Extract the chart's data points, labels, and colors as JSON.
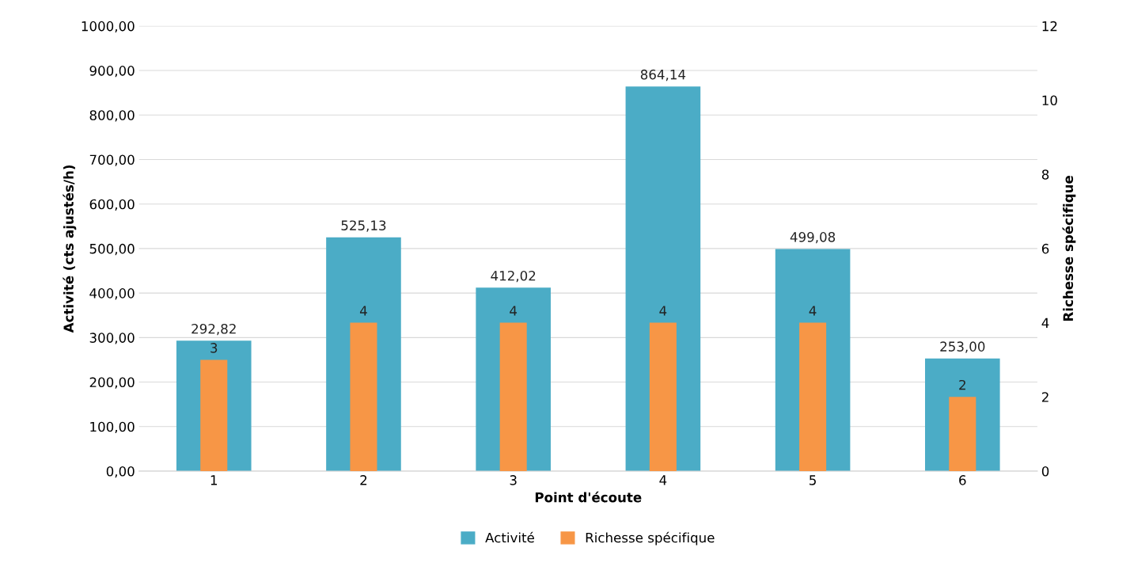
{
  "chart_data": {
    "type": "bar",
    "xlabel": "Point d'écoute",
    "ylabel": "Activité (cts ajustés/h)",
    "y2label": "Richesse spécifique",
    "categories": [
      "1",
      "2",
      "3",
      "4",
      "5",
      "6"
    ],
    "series": [
      {
        "name": "Activité",
        "color": "#4bacc6",
        "values": [
          292.82,
          525.13,
          412.02,
          864.14,
          499.08,
          253.0
        ],
        "value_labels": [
          "292,82",
          "525,13",
          "412,02",
          "864,14",
          "499,08",
          "253,00"
        ]
      },
      {
        "name": "Richesse spécifique",
        "color": "#f79646",
        "axis": "y2",
        "values": [
          3,
          4,
          4,
          4,
          4,
          2
        ],
        "value_labels": [
          "3",
          "4",
          "4",
          "4",
          "4",
          "2"
        ]
      }
    ],
    "ylim": [
      0,
      1000
    ],
    "yticks": [
      {
        "value": 0,
        "label": "0,00"
      },
      {
        "value": 100,
        "label": "100,00"
      },
      {
        "value": 200,
        "label": "200,00"
      },
      {
        "value": 300,
        "label": "300,00"
      },
      {
        "value": 400,
        "label": "400,00"
      },
      {
        "value": 500,
        "label": "500,00"
      },
      {
        "value": 600,
        "label": "600,00"
      },
      {
        "value": 700,
        "label": "700,00"
      },
      {
        "value": 800,
        "label": "800,00"
      },
      {
        "value": 900,
        "label": "900,00"
      },
      {
        "value": 1000,
        "label": "1000,00"
      }
    ],
    "y2lim": [
      0,
      12
    ],
    "y2ticks": [
      0,
      2,
      4,
      6,
      8,
      10,
      12
    ],
    "grid": "y",
    "legend": "bottom"
  }
}
